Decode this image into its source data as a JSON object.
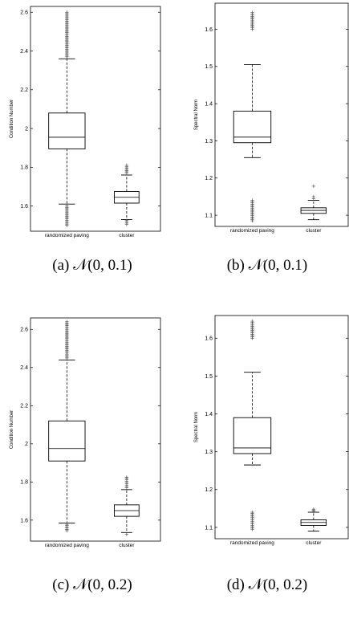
{
  "chart_data": [
    {
      "type": "box",
      "caption": "(a) 𝒩(0, 0.1)",
      "ylabel": "Condition Number",
      "ylim": [
        1.47,
        2.63
      ],
      "yticks": [
        1.6,
        1.8,
        2.0,
        2.2,
        2.4,
        2.6
      ],
      "ytick_labels": [
        "1.6",
        "1.8",
        "2",
        "2.2",
        "2.4",
        "2.6"
      ],
      "categories": [
        "randomized paving",
        "cluster"
      ],
      "boxes": [
        {
          "name": "randomized paving",
          "whisker_low": 1.61,
          "q1": 1.895,
          "median": 1.955,
          "q3": 2.08,
          "whisker_high": 2.36,
          "outliers_low": [
            1.5,
            1.6
          ],
          "outliers_high": [
            2.37,
            2.6
          ]
        },
        {
          "name": "cluster",
          "whisker_low": 1.53,
          "q1": 1.615,
          "median": 1.645,
          "q3": 1.675,
          "whisker_high": 1.76,
          "outliers_low": [
            1.505,
            1.525
          ],
          "outliers_high": [
            1.77,
            1.81
          ]
        }
      ]
    },
    {
      "type": "box",
      "caption": "(b) 𝒩(0, 0.1)",
      "ylabel": "Spectral Norm",
      "ylim": [
        1.07,
        1.67
      ],
      "yticks": [
        1.1,
        1.2,
        1.3,
        1.4,
        1.5,
        1.6
      ],
      "ytick_labels": [
        "1.1",
        "1.2",
        "1.3",
        "1.4",
        "1.5",
        "1.6"
      ],
      "categories": [
        "randomized paving",
        "cluster"
      ],
      "boxes": [
        {
          "name": "randomized paving",
          "whisker_low": 1.255,
          "q1": 1.295,
          "median": 1.31,
          "q3": 1.38,
          "whisker_high": 1.505,
          "outliers_low": [
            1.085,
            1.14
          ],
          "outliers_high": [
            1.6,
            1.645
          ]
        },
        {
          "name": "cluster",
          "whisker_low": 1.088,
          "q1": 1.105,
          "median": 1.113,
          "q3": 1.12,
          "whisker_high": 1.14,
          "outliers_low": [],
          "outliers_high": [
            1.145,
            1.15,
            1.178
          ]
        }
      ]
    },
    {
      "type": "box",
      "caption": "(c) 𝒩(0, 0.2)",
      "ylabel": "Condition Number",
      "ylim": [
        1.49,
        2.66
      ],
      "yticks": [
        1.6,
        1.8,
        2.0,
        2.2,
        2.4,
        2.6
      ],
      "ytick_labels": [
        "1.6",
        "1.8",
        "2",
        "2.2",
        "2.4",
        "2.6"
      ],
      "categories": [
        "randomized paving",
        "cluster"
      ],
      "boxes": [
        {
          "name": "randomized paving",
          "whisker_low": 1.585,
          "q1": 1.91,
          "median": 1.975,
          "q3": 2.12,
          "whisker_high": 2.44,
          "outliers_low": [
            1.545,
            1.585
          ],
          "outliers_high": [
            2.45,
            2.64
          ]
        },
        {
          "name": "cluster",
          "whisker_low": 1.535,
          "q1": 1.62,
          "median": 1.65,
          "q3": 1.68,
          "whisker_high": 1.76,
          "outliers_low": [
            1.525
          ],
          "outliers_high": [
            1.77,
            1.825
          ]
        }
      ]
    },
    {
      "type": "box",
      "caption": "(d) 𝒩(0, 0.2)",
      "ylabel": "Spectral Norm",
      "ylim": [
        1.07,
        1.66
      ],
      "yticks": [
        1.1,
        1.2,
        1.3,
        1.4,
        1.5,
        1.6
      ],
      "ytick_labels": [
        "1.1",
        "1.2",
        "1.3",
        "1.4",
        "1.5",
        "1.6"
      ],
      "categories": [
        "randomized paving",
        "cluster"
      ],
      "boxes": [
        {
          "name": "randomized paving",
          "whisker_low": 1.265,
          "q1": 1.295,
          "median": 1.31,
          "q3": 1.39,
          "whisker_high": 1.51,
          "outliers_low": [
            1.095,
            1.14
          ],
          "outliers_high": [
            1.6,
            1.645
          ]
        },
        {
          "name": "cluster",
          "whisker_low": 1.09,
          "q1": 1.105,
          "median": 1.113,
          "q3": 1.12,
          "whisker_high": 1.14,
          "outliers_low": [],
          "outliers_high": [
            1.142,
            1.148
          ]
        }
      ]
    }
  ]
}
